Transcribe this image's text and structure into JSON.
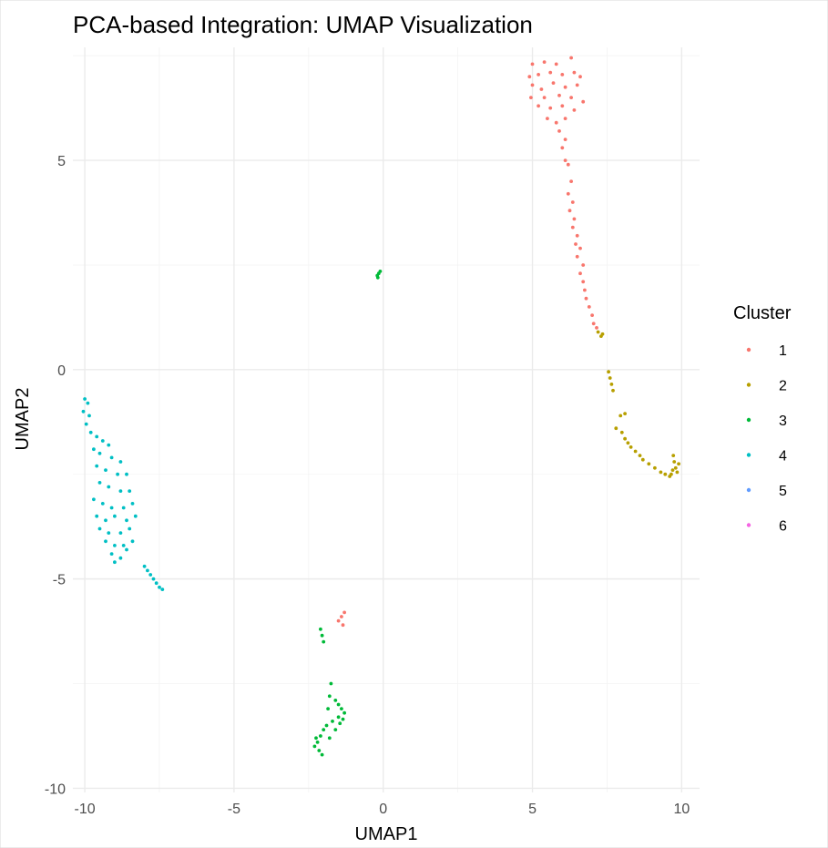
{
  "chart_data": {
    "type": "scatter",
    "title": "PCA-based Integration: UMAP Visualization",
    "xlabel": "UMAP1",
    "ylabel": "UMAP2",
    "xlim": [
      -10.4,
      10.6
    ],
    "ylim": [
      -10.1,
      7.7
    ],
    "x_ticks": [
      -10,
      -5,
      0,
      5,
      10
    ],
    "y_ticks": [
      -10,
      -5,
      0,
      5
    ],
    "x_tick_labels": [
      "-10",
      "-5",
      "0",
      "5",
      "10"
    ],
    "y_tick_labels": [
      "-10",
      "-5",
      "0",
      "5"
    ],
    "grid": true,
    "legend_title": "Cluster",
    "legend_position": "right",
    "series": [
      {
        "name": "1",
        "color": "#F8766D",
        "points": [
          [
            5.0,
            7.3
          ],
          [
            5.4,
            7.35
          ],
          [
            5.8,
            7.3
          ],
          [
            6.3,
            7.45
          ],
          [
            4.9,
            7.0
          ],
          [
            5.2,
            7.05
          ],
          [
            5.6,
            7.1
          ],
          [
            6.0,
            7.05
          ],
          [
            6.4,
            7.1
          ],
          [
            6.6,
            7.0
          ],
          [
            5.0,
            6.8
          ],
          [
            5.3,
            6.7
          ],
          [
            5.7,
            6.85
          ],
          [
            6.1,
            6.75
          ],
          [
            6.5,
            6.8
          ],
          [
            4.95,
            6.5
          ],
          [
            5.4,
            6.5
          ],
          [
            5.9,
            6.55
          ],
          [
            6.3,
            6.5
          ],
          [
            6.7,
            6.4
          ],
          [
            5.2,
            6.3
          ],
          [
            5.6,
            6.25
          ],
          [
            6.0,
            6.3
          ],
          [
            6.4,
            6.2
          ],
          [
            5.5,
            6.0
          ],
          [
            5.8,
            5.9
          ],
          [
            6.1,
            6.0
          ],
          [
            5.9,
            5.7
          ],
          [
            6.1,
            5.5
          ],
          [
            6.0,
            5.3
          ],
          [
            6.1,
            5.0
          ],
          [
            6.2,
            4.9
          ],
          [
            6.3,
            4.5
          ],
          [
            6.2,
            4.2
          ],
          [
            6.35,
            4.0
          ],
          [
            6.25,
            3.8
          ],
          [
            6.4,
            3.6
          ],
          [
            6.35,
            3.4
          ],
          [
            6.5,
            3.2
          ],
          [
            6.45,
            3.0
          ],
          [
            6.6,
            2.9
          ],
          [
            6.5,
            2.7
          ],
          [
            6.7,
            2.5
          ],
          [
            6.6,
            2.3
          ],
          [
            6.7,
            2.1
          ],
          [
            6.75,
            1.9
          ],
          [
            6.8,
            1.7
          ],
          [
            6.9,
            1.5
          ],
          [
            7.0,
            1.3
          ],
          [
            7.05,
            1.1
          ],
          [
            7.15,
            1.0
          ],
          [
            -1.3,
            -5.8
          ],
          [
            -1.4,
            -5.9
          ],
          [
            -1.5,
            -6.0
          ],
          [
            -1.35,
            -6.1
          ]
        ]
      },
      {
        "name": "2",
        "color": "#B79F00",
        "points": [
          [
            7.2,
            0.9
          ],
          [
            7.3,
            0.8
          ],
          [
            7.35,
            0.85
          ],
          [
            7.55,
            -0.05
          ],
          [
            7.6,
            -0.2
          ],
          [
            7.65,
            -0.35
          ],
          [
            7.7,
            -0.5
          ],
          [
            7.95,
            -1.1
          ],
          [
            8.1,
            -1.05
          ],
          [
            7.8,
            -1.4
          ],
          [
            8.0,
            -1.5
          ],
          [
            8.1,
            -1.65
          ],
          [
            8.2,
            -1.75
          ],
          [
            8.3,
            -1.85
          ],
          [
            8.45,
            -1.95
          ],
          [
            8.6,
            -2.05
          ],
          [
            8.7,
            -2.15
          ],
          [
            8.9,
            -2.25
          ],
          [
            9.1,
            -2.35
          ],
          [
            9.3,
            -2.45
          ],
          [
            9.45,
            -2.5
          ],
          [
            9.6,
            -2.55
          ],
          [
            9.7,
            -2.4
          ],
          [
            9.75,
            -2.2
          ],
          [
            9.8,
            -2.35
          ],
          [
            9.85,
            -2.45
          ],
          [
            9.9,
            -2.25
          ],
          [
            9.72,
            -2.05
          ],
          [
            9.65,
            -2.5
          ]
        ]
      },
      {
        "name": "3",
        "color": "#00BA38",
        "points": [
          [
            -0.15,
            2.3
          ],
          [
            -0.2,
            2.25
          ],
          [
            -0.1,
            2.35
          ],
          [
            -0.18,
            2.2
          ],
          [
            -2.1,
            -6.2
          ],
          [
            -2.05,
            -6.35
          ],
          [
            -2.0,
            -6.5
          ],
          [
            -1.75,
            -7.5
          ],
          [
            -1.8,
            -7.8
          ],
          [
            -1.6,
            -7.9
          ],
          [
            -1.5,
            -8.0
          ],
          [
            -1.4,
            -8.1
          ],
          [
            -1.3,
            -8.2
          ],
          [
            -1.35,
            -8.35
          ],
          [
            -1.5,
            -8.3
          ],
          [
            -1.7,
            -8.4
          ],
          [
            -1.9,
            -8.5
          ],
          [
            -2.0,
            -8.6
          ],
          [
            -2.1,
            -8.75
          ],
          [
            -2.2,
            -8.9
          ],
          [
            -2.3,
            -9.0
          ],
          [
            -2.15,
            -9.1
          ],
          [
            -2.05,
            -9.2
          ],
          [
            -1.8,
            -8.8
          ],
          [
            -1.6,
            -8.6
          ],
          [
            -1.45,
            -8.45
          ],
          [
            -1.85,
            -8.1
          ],
          [
            -2.25,
            -8.8
          ]
        ]
      },
      {
        "name": "4",
        "color": "#00BFC4",
        "points": [
          [
            -10.0,
            -0.7
          ],
          [
            -9.9,
            -0.8
          ],
          [
            -10.05,
            -1.0
          ],
          [
            -9.85,
            -1.1
          ],
          [
            -9.95,
            -1.3
          ],
          [
            -9.8,
            -1.5
          ],
          [
            -9.6,
            -1.6
          ],
          [
            -9.4,
            -1.7
          ],
          [
            -9.2,
            -1.8
          ],
          [
            -9.7,
            -1.9
          ],
          [
            -9.5,
            -2.0
          ],
          [
            -9.1,
            -2.1
          ],
          [
            -8.8,
            -2.2
          ],
          [
            -9.6,
            -2.3
          ],
          [
            -9.3,
            -2.4
          ],
          [
            -8.9,
            -2.5
          ],
          [
            -8.6,
            -2.5
          ],
          [
            -9.5,
            -2.7
          ],
          [
            -9.2,
            -2.8
          ],
          [
            -8.8,
            -2.9
          ],
          [
            -8.5,
            -2.9
          ],
          [
            -9.7,
            -3.1
          ],
          [
            -9.4,
            -3.2
          ],
          [
            -9.1,
            -3.3
          ],
          [
            -8.7,
            -3.3
          ],
          [
            -8.4,
            -3.2
          ],
          [
            -9.6,
            -3.5
          ],
          [
            -9.3,
            -3.6
          ],
          [
            -9.0,
            -3.5
          ],
          [
            -8.6,
            -3.6
          ],
          [
            -8.3,
            -3.5
          ],
          [
            -9.5,
            -3.8
          ],
          [
            -9.2,
            -3.9
          ],
          [
            -8.8,
            -3.9
          ],
          [
            -8.5,
            -3.8
          ],
          [
            -9.3,
            -4.1
          ],
          [
            -9.0,
            -4.2
          ],
          [
            -8.7,
            -4.2
          ],
          [
            -8.4,
            -4.1
          ],
          [
            -9.1,
            -4.4
          ],
          [
            -8.8,
            -4.5
          ],
          [
            -8.6,
            -4.3
          ],
          [
            -9.0,
            -4.6
          ],
          [
            -8.0,
            -4.7
          ],
          [
            -7.9,
            -4.8
          ],
          [
            -7.8,
            -4.9
          ],
          [
            -7.7,
            -5.0
          ],
          [
            -7.6,
            -5.1
          ],
          [
            -7.5,
            -5.2
          ],
          [
            -7.4,
            -5.25
          ]
        ]
      },
      {
        "name": "5",
        "color": "#619CFF",
        "points": []
      },
      {
        "name": "6",
        "color": "#F564E3",
        "points": []
      }
    ]
  }
}
